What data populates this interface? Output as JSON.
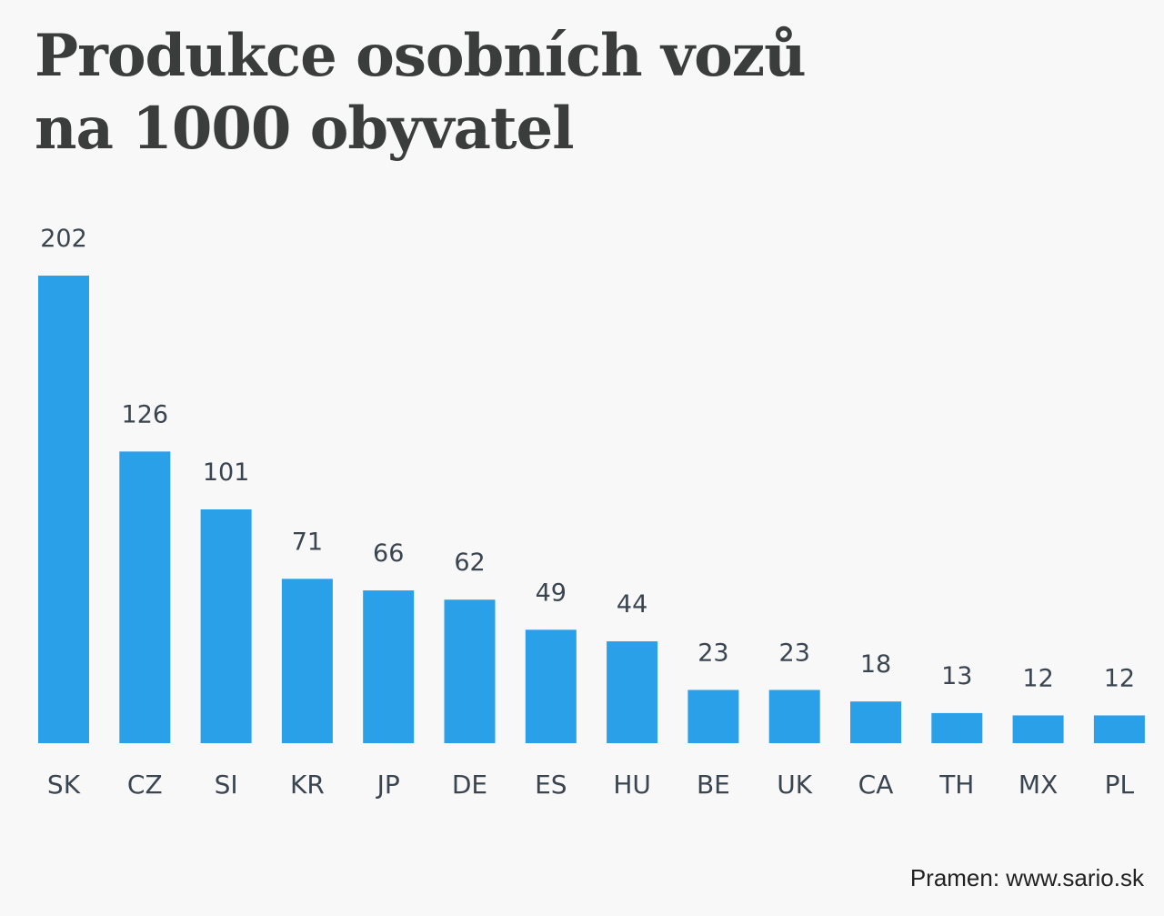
{
  "chart_data": {
    "type": "bar",
    "title_lines": [
      "Produkce osobních vozů",
      "na 1000 obyvatel"
    ],
    "categories": [
      "SK",
      "CZ",
      "SI",
      "KR",
      "JP",
      "DE",
      "ES",
      "HU",
      "BE",
      "UK",
      "CA",
      "TH",
      "MX",
      "PL"
    ],
    "values": [
      202,
      126,
      101,
      71,
      66,
      62,
      49,
      44,
      23,
      23,
      18,
      13,
      12,
      12
    ],
    "xlabel": "",
    "ylabel": "",
    "ylim": [
      0,
      202
    ],
    "grid": false,
    "bar_color": "#2aa0e8",
    "label_color": "#3a4550",
    "source": "Pramen: www.sario.sk"
  }
}
